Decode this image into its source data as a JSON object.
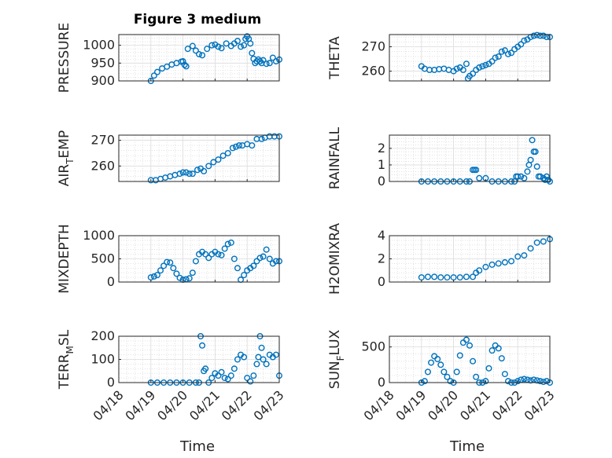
{
  "figure": {
    "title": "Figure 3 medium",
    "xlabel": "Time",
    "date_ticks": [
      "04/18",
      "04/19",
      "04/20",
      "04/21",
      "04/22",
      "04/23"
    ],
    "marker_color": "#0072BD",
    "grid": "minor dotted + major"
  },
  "chart_data": [
    {
      "type": "scatter",
      "ylabel": "PRESSURE",
      "ylabel_sub": "",
      "xlim": [
        "04/18",
        "04/23"
      ],
      "ylim": [
        900,
        1030
      ],
      "yticks": [
        900,
        950,
        1000
      ],
      "ytick_labels": [
        "900",
        "950",
        "1000"
      ],
      "x_days": [
        1.0,
        1.1,
        1.2,
        1.35,
        1.5,
        1.65,
        1.8,
        1.95,
        2.0,
        2.05,
        2.1,
        2.15,
        2.3,
        2.4,
        2.5,
        2.6,
        2.75,
        2.9,
        3.0,
        3.1,
        3.2,
        3.35,
        3.5,
        3.6,
        3.7,
        3.8,
        3.9,
        3.95,
        4.0,
        4.05,
        4.1,
        4.15,
        4.2,
        4.25,
        4.3,
        4.35,
        4.4,
        4.45,
        4.5,
        4.6,
        4.7,
        4.8,
        4.9,
        5.0
      ],
      "y": [
        900,
        915,
        925,
        935,
        940,
        946,
        950,
        954,
        955,
        945,
        941,
        990,
        998,
        985,
        975,
        972,
        990,
        1000,
        1002,
        996,
        992,
        1005,
        998,
        1005,
        1012,
        996,
        1000,
        1018,
        1025,
        1018,
        1005,
        978,
        962,
        950,
        955,
        960,
        955,
        950,
        958,
        948,
        950,
        965,
        955,
        960
      ]
    },
    {
      "type": "scatter",
      "ylabel": "THETA",
      "ylabel_sub": "",
      "xlim": [
        "04/18",
        "04/23"
      ],
      "ylim": [
        256,
        275
      ],
      "yticks": [
        260,
        270
      ],
      "ytick_labels": [
        "260",
        "270"
      ],
      "x_days": [
        1.0,
        1.1,
        1.25,
        1.4,
        1.55,
        1.7,
        1.85,
        2.0,
        2.1,
        2.2,
        2.3,
        2.4,
        2.45,
        2.5,
        2.6,
        2.7,
        2.8,
        2.9,
        3.0,
        3.1,
        3.2,
        3.3,
        3.4,
        3.5,
        3.6,
        3.7,
        3.8,
        3.9,
        4.0,
        4.1,
        4.2,
        4.3,
        4.4,
        4.5,
        4.6,
        4.7,
        4.8,
        4.9,
        5.0
      ],
      "y": [
        262,
        261,
        260.5,
        260.5,
        260.8,
        261,
        260.5,
        260,
        261,
        261.5,
        260.5,
        263,
        257,
        258,
        259,
        260.5,
        261.5,
        262,
        262.5,
        263,
        264,
        265.5,
        266,
        268,
        268.5,
        267,
        267.5,
        269,
        270,
        271,
        272.5,
        273,
        274,
        274.5,
        274.8,
        274.5,
        274.5,
        274,
        274
      ]
    },
    {
      "type": "scatter",
      "ylabel": "AIR",
      "ylabel_sub": "T",
      "ylabel_suffix": "EMP",
      "xlim": [
        "04/18",
        "04/23"
      ],
      "ylim": [
        254,
        272
      ],
      "yticks": [
        260,
        270
      ],
      "ytick_labels": [
        "260",
        "270"
      ],
      "x_days": [
        1.0,
        1.15,
        1.3,
        1.45,
        1.6,
        1.75,
        1.9,
        2.0,
        2.1,
        2.2,
        2.3,
        2.45,
        2.55,
        2.65,
        2.8,
        2.95,
        3.1,
        3.25,
        3.4,
        3.55,
        3.65,
        3.75,
        3.85,
        4.0,
        4.15,
        4.3,
        4.45,
        4.55,
        4.7,
        4.85,
        5.0
      ],
      "y": [
        254.5,
        254.5,
        255,
        255.5,
        256,
        256.5,
        257,
        257.5,
        257.5,
        257,
        257,
        258.5,
        259,
        258,
        260,
        261.5,
        262.5,
        264,
        265,
        267,
        267.5,
        268,
        268,
        268.5,
        268,
        270.5,
        270.5,
        271,
        271.5,
        271.5,
        271.5
      ]
    },
    {
      "type": "scatter",
      "ylabel": "RAINFALL",
      "ylabel_sub": "",
      "xlim": [
        "04/18",
        "04/23"
      ],
      "ylim": [
        0,
        2.8
      ],
      "yticks": [
        0,
        1,
        2
      ],
      "ytick_labels": [
        "0",
        "1",
        "2"
      ],
      "x_days": [
        1.0,
        1.2,
        1.4,
        1.6,
        1.8,
        2.0,
        2.2,
        2.4,
        2.5,
        2.6,
        2.65,
        2.7,
        2.8,
        3.0,
        3.2,
        3.4,
        3.6,
        3.8,
        3.9,
        3.95,
        4.0,
        4.1,
        4.2,
        4.3,
        4.35,
        4.4,
        4.45,
        4.5,
        4.55,
        4.6,
        4.65,
        4.7,
        4.8,
        4.85,
        4.9,
        4.95,
        5.0
      ],
      "y": [
        0,
        0,
        0,
        0,
        0,
        0,
        0,
        0,
        0,
        0.7,
        0.7,
        0.7,
        0.2,
        0.2,
        0,
        0,
        0,
        0,
        0,
        0.3,
        0.3,
        0.3,
        0.2,
        0.6,
        1.0,
        1.3,
        2.5,
        1.8,
        1.8,
        0.9,
        0.3,
        0.3,
        0.2,
        0.1,
        0.3,
        0.1,
        0
      ]
    },
    {
      "type": "scatter",
      "ylabel": "MIXDEPTH",
      "ylabel_sub": "",
      "xlim": [
        "04/18",
        "04/23"
      ],
      "ylim": [
        0,
        1000
      ],
      "yticks": [
        0,
        500,
        1000
      ],
      "ytick_labels": [
        "0",
        "500",
        "1000"
      ],
      "x_days": [
        1.0,
        1.1,
        1.2,
        1.3,
        1.4,
        1.5,
        1.6,
        1.7,
        1.8,
        1.9,
        2.0,
        2.1,
        2.2,
        2.3,
        2.4,
        2.5,
        2.6,
        2.7,
        2.8,
        2.9,
        3.0,
        3.1,
        3.2,
        3.3,
        3.4,
        3.5,
        3.6,
        3.7,
        3.8,
        3.9,
        4.0,
        4.1,
        4.2,
        4.3,
        4.4,
        4.5,
        4.6,
        4.7,
        4.8,
        4.9,
        5.0
      ],
      "y": [
        100,
        120,
        150,
        250,
        350,
        430,
        420,
        300,
        180,
        90,
        50,
        60,
        80,
        200,
        450,
        600,
        650,
        600,
        520,
        600,
        650,
        600,
        580,
        720,
        820,
        850,
        500,
        300,
        50,
        150,
        250,
        300,
        350,
        450,
        520,
        550,
        700,
        500,
        400,
        450,
        450
      ]
    },
    {
      "type": "scatter",
      "ylabel": "H2OMIXRA",
      "ylabel_sub": "",
      "xlim": [
        "04/18",
        "04/23"
      ],
      "ylim": [
        0,
        4
      ],
      "yticks": [
        0,
        2,
        4
      ],
      "ytick_labels": [
        "0",
        "2",
        "4"
      ],
      "x_days": [
        1.0,
        1.2,
        1.4,
        1.6,
        1.8,
        2.0,
        2.2,
        2.4,
        2.6,
        2.7,
        2.8,
        3.0,
        3.2,
        3.4,
        3.6,
        3.8,
        4.0,
        4.2,
        4.4,
        4.6,
        4.8,
        5.0
      ],
      "y": [
        0.4,
        0.45,
        0.45,
        0.4,
        0.4,
        0.4,
        0.4,
        0.45,
        0.45,
        0.8,
        1.0,
        1.3,
        1.5,
        1.6,
        1.7,
        1.8,
        2.2,
        2.3,
        2.9,
        3.4,
        3.5,
        3.7
      ]
    },
    {
      "type": "scatter",
      "ylabel": "TERR",
      "ylabel_sub": "M",
      "ylabel_suffix": "SL",
      "xlim": [
        "04/18",
        "04/23"
      ],
      "ylim": [
        0,
        200
      ],
      "yticks": [
        0,
        100,
        200
      ],
      "ytick_labels": [
        "0",
        "100",
        "200"
      ],
      "x_days": [
        1.0,
        1.2,
        1.4,
        1.6,
        1.8,
        2.0,
        2.2,
        2.4,
        2.5,
        2.55,
        2.6,
        2.65,
        2.7,
        2.8,
        2.9,
        3.0,
        3.1,
        3.2,
        3.3,
        3.4,
        3.5,
        3.6,
        3.7,
        3.8,
        3.9,
        4.0,
        4.1,
        4.2,
        4.3,
        4.35,
        4.4,
        4.45,
        4.5,
        4.6,
        4.7,
        4.8,
        4.9,
        5.0
      ],
      "y": [
        0,
        0,
        0,
        0,
        0,
        0,
        0,
        0,
        0,
        200,
        160,
        50,
        60,
        0,
        20,
        40,
        30,
        45,
        20,
        15,
        30,
        60,
        100,
        120,
        110,
        20,
        5,
        30,
        80,
        110,
        200,
        150,
        100,
        80,
        120,
        110,
        120,
        30
      ]
    },
    {
      "type": "scatter",
      "ylabel": "SUN",
      "ylabel_sub": "F",
      "ylabel_suffix": "LUX",
      "xlim": [
        "04/18",
        "04/23"
      ],
      "ylim": [
        0,
        650
      ],
      "yticks": [
        0,
        500
      ],
      "ytick_labels": [
        "0",
        "500"
      ],
      "x_days": [
        1.0,
        1.1,
        1.2,
        1.3,
        1.4,
        1.5,
        1.6,
        1.7,
        1.8,
        1.9,
        2.0,
        2.1,
        2.2,
        2.3,
        2.4,
        2.5,
        2.6,
        2.7,
        2.8,
        2.9,
        3.0,
        3.1,
        3.2,
        3.3,
        3.4,
        3.5,
        3.6,
        3.7,
        3.8,
        3.9,
        4.0,
        4.1,
        4.2,
        4.3,
        4.4,
        4.5,
        4.6,
        4.7,
        4.8,
        4.9,
        5.0
      ],
      "y": [
        0,
        20,
        150,
        280,
        370,
        330,
        250,
        150,
        80,
        20,
        0,
        150,
        380,
        560,
        600,
        520,
        300,
        80,
        0,
        0,
        20,
        200,
        450,
        520,
        480,
        340,
        120,
        20,
        0,
        0,
        20,
        40,
        50,
        40,
        30,
        40,
        30,
        20,
        10,
        20,
        0
      ]
    }
  ]
}
